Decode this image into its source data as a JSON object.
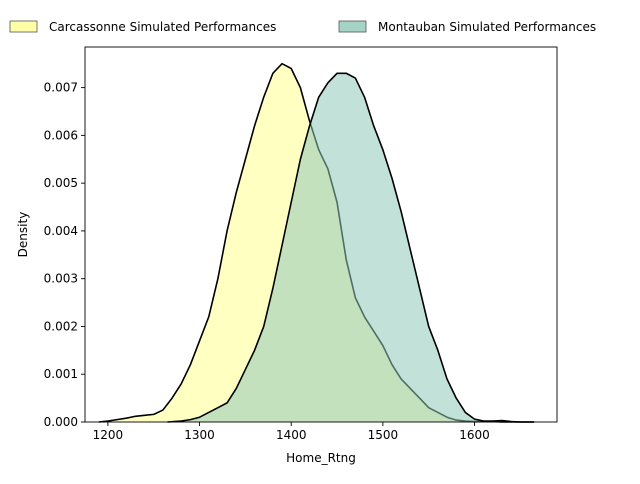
{
  "chart_data": {
    "type": "area",
    "title": "",
    "xlabel": "Home_Rtng",
    "ylabel": "Density",
    "xlim": [
      1175,
      1690
    ],
    "ylim": [
      0,
      0.00785
    ],
    "x_ticks": [
      1200,
      1300,
      1400,
      1500,
      1600
    ],
    "y_ticks": [
      0.0,
      0.001,
      0.002,
      0.003,
      0.004,
      0.005,
      0.006,
      0.007
    ],
    "x_tick_labels": [
      "1200",
      "1300",
      "1400",
      "1500",
      "1600"
    ],
    "y_tick_labels": [
      "0.000",
      "0.001",
      "0.002",
      "0.003",
      "0.004",
      "0.005",
      "0.006",
      "0.007"
    ],
    "grid": false,
    "legend_position": "top",
    "series": [
      {
        "name": "Carcassonne Simulated Performances",
        "fill": "#ffff99",
        "fill_opacity": 0.6,
        "stroke": "#000000",
        "x": [
          1190,
          1200,
          1210,
          1220,
          1230,
          1240,
          1250,
          1260,
          1270,
          1280,
          1290,
          1300,
          1310,
          1320,
          1330,
          1340,
          1350,
          1360,
          1370,
          1380,
          1390,
          1400,
          1410,
          1420,
          1430,
          1440,
          1450,
          1460,
          1470,
          1480,
          1490,
          1500,
          1510,
          1520,
          1530,
          1540,
          1550,
          1560,
          1570,
          1580,
          1590,
          1600,
          1610,
          1620,
          1630,
          1640,
          1650,
          1665
        ],
        "y": [
          0.0,
          2e-05,
          5e-05,
          8e-05,
          0.00012,
          0.00014,
          0.00016,
          0.00025,
          0.0005,
          0.0008,
          0.0012,
          0.0017,
          0.0022,
          0.003,
          0.004,
          0.0048,
          0.0055,
          0.0062,
          0.0068,
          0.0073,
          0.0075,
          0.0074,
          0.007,
          0.0063,
          0.0057,
          0.0053,
          0.0046,
          0.0034,
          0.0026,
          0.0022,
          0.0019,
          0.0016,
          0.0012,
          0.0009,
          0.0007,
          0.0005,
          0.0003,
          0.0002,
          0.0001,
          4e-05,
          2e-05,
          1e-05,
          1e-05,
          1e-05,
          0.0,
          0.0,
          0.0,
          0.0
        ]
      },
      {
        "name": "Montauban Simulated Performances",
        "fill": "#8fc9b8",
        "fill_opacity": 0.55,
        "stroke": "#000000",
        "x": [
          1265,
          1280,
          1290,
          1300,
          1310,
          1320,
          1330,
          1340,
          1350,
          1360,
          1370,
          1380,
          1390,
          1400,
          1410,
          1420,
          1430,
          1440,
          1450,
          1460,
          1470,
          1480,
          1490,
          1500,
          1510,
          1520,
          1530,
          1540,
          1550,
          1560,
          1570,
          1580,
          1590,
          1600,
          1610,
          1620,
          1630,
          1640,
          1650,
          1665
        ],
        "y": [
          0.0,
          2e-05,
          5e-05,
          0.0001,
          0.0002,
          0.0003,
          0.0004,
          0.0007,
          0.0011,
          0.0015,
          0.002,
          0.0028,
          0.0037,
          0.0046,
          0.0055,
          0.0062,
          0.0068,
          0.0071,
          0.0073,
          0.0073,
          0.0072,
          0.0068,
          0.0062,
          0.0057,
          0.0051,
          0.0044,
          0.0036,
          0.0028,
          0.002,
          0.0015,
          0.0009,
          0.0005,
          0.0002,
          6e-05,
          2e-05,
          2e-05,
          3e-05,
          1e-05,
          0.0,
          0.0
        ]
      }
    ]
  }
}
